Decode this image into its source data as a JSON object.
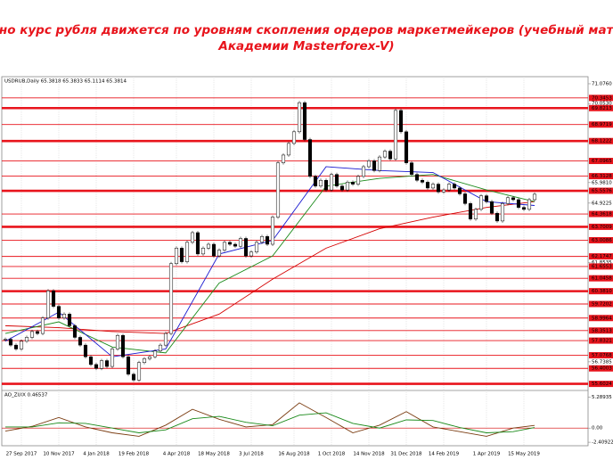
{
  "chart_data": {
    "type": "candlestick",
    "title": [
      "Реально курс рубля движется по уровням скопления ордеров маркетмейкеров (учебный материал",
      "Академии Masterforex-V)"
    ],
    "symbol_label": "USDRUB,Daily  65.3818 65.3833 65.1114 65.3814",
    "values": [
      57.9,
      57.6,
      57.4,
      57.8,
      58.0,
      58.3,
      58.2,
      59.0,
      60.4,
      59.6,
      59.0,
      59.2,
      58.6,
      58.0,
      57.6,
      57.0,
      56.6,
      56.4,
      56.8,
      56.5,
      57.4,
      58.1,
      57.0,
      56.1,
      55.8,
      56.7,
      56.9,
      57.0,
      57.3,
      57.6,
      58.2,
      61.8,
      62.6,
      61.9,
      62.9,
      63.4,
      62.3,
      62.6,
      62.8,
      62.2,
      62.5,
      62.9,
      62.8,
      62.7,
      63.1,
      62.2,
      62.4,
      62.9,
      63.2,
      62.8,
      64.2,
      67.0,
      67.4,
      68.0,
      68.6,
      70.1,
      68.2,
      66.3,
      65.8,
      66.1,
      65.6,
      66.4,
      65.8,
      65.6,
      66.0,
      65.9,
      66.3,
      66.8,
      67.1,
      66.6,
      67.3,
      67.6,
      67.2,
      69.7,
      68.6,
      67.0,
      66.4,
      66.1,
      66.0,
      65.7,
      65.9,
      65.5,
      65.6,
      65.9,
      65.7,
      65.4,
      64.9,
      64.1,
      64.6,
      65.3,
      65.0,
      64.4,
      64.0,
      64.9,
      65.2,
      65.1,
      64.7,
      64.6,
      65.1,
      65.38
    ],
    "series": [
      {
        "color": "#d40000",
        "x": [
          0,
          10,
          20,
          30,
          40,
          50,
          60,
          70,
          80,
          90,
          99
        ],
        "values": [
          58.6,
          58.5,
          58.3,
          58.2,
          59.2,
          61.0,
          62.6,
          63.6,
          64.2,
          64.7,
          65.0
        ]
      },
      {
        "color": "#1a8a1a",
        "x": [
          0,
          10,
          20,
          30,
          40,
          50,
          60,
          70,
          80,
          90,
          99
        ],
        "values": [
          58.2,
          58.8,
          57.5,
          57.2,
          60.8,
          62.2,
          65.8,
          66.2,
          66.4,
          65.6,
          65.0
        ]
      },
      {
        "color": "#1a1ad0",
        "x": [
          0,
          10,
          20,
          30,
          40,
          50,
          60,
          70,
          80,
          90,
          99
        ],
        "values": [
          57.8,
          59.3,
          57.0,
          57.4,
          62.3,
          63.0,
          66.8,
          66.6,
          66.5,
          65.0,
          64.8
        ]
      }
    ],
    "xlim": [
      0,
      109
    ],
    "xticks": [
      {
        "value": 3,
        "label": "27 Sep 2017"
      },
      {
        "value": 10,
        "label": "10 Nov 2017"
      },
      {
        "value": 17,
        "label": "4 Jan 2018"
      },
      {
        "value": 24,
        "label": "19 Feb 2018"
      },
      {
        "value": 32,
        "label": "4 Apr 2018"
      },
      {
        "value": 39,
        "label": "18 May 2018"
      },
      {
        "value": 46,
        "label": "3 Jul 2018"
      },
      {
        "value": 54,
        "label": "16 Aug 2018"
      },
      {
        "value": 61,
        "label": "1 Oct 2018"
      },
      {
        "value": 68,
        "label": "14 Nov 2018"
      },
      {
        "value": 75,
        "label": "31 Dec 2018"
      },
      {
        "value": 82,
        "label": "14 Feb 2019"
      },
      {
        "value": 90,
        "label": "1 Apr 2019"
      },
      {
        "value": 97,
        "label": "15 May 2019"
      }
    ],
    "ylim": [
      55.4,
      71.35
    ],
    "yticks": [
      {
        "value": 71.076,
        "label": "71.0760"
      },
      {
        "value": 70.053,
        "label": "70.0530"
      },
      {
        "value": 65.981,
        "label": "65.9810"
      },
      {
        "value": 64.9225,
        "label": "64.9225"
      },
      {
        "value": 61.8535,
        "label": "61.8535"
      },
      {
        "value": 56.7385,
        "label": "56.7385"
      }
    ],
    "levels": [
      {
        "value": 70.3453,
        "label": "70.3453"
      },
      {
        "value": 69.8213,
        "label": "69.8213"
      },
      {
        "value": 68.9719,
        "label": "68.9719"
      },
      {
        "value": 68.1222,
        "label": "68.1222"
      },
      {
        "value": 67.0965,
        "label": "67.0965"
      },
      {
        "value": 66.3128,
        "label": "66.3128"
      },
      {
        "value": 65.5576,
        "label": "65.5576"
      },
      {
        "value": 64.3618,
        "label": "64.3618"
      },
      {
        "value": 63.7009,
        "label": "63.7009"
      },
      {
        "value": 63.0086,
        "label": "63.0086"
      },
      {
        "value": 62.1747,
        "label": "62.1747"
      },
      {
        "value": 61.6553,
        "label": "61.6553"
      },
      {
        "value": 61.0458,
        "label": "61.0458"
      },
      {
        "value": 60.381,
        "label": "60.3810"
      },
      {
        "value": 59.7202,
        "label": "59.7202"
      },
      {
        "value": 58.9964,
        "label": "58.9964"
      },
      {
        "value": 58.3513,
        "label": "58.3513"
      },
      {
        "value": 57.8321,
        "label": "57.8321"
      },
      {
        "value": 57.0768,
        "label": "57.0768"
      },
      {
        "value": 56.4003,
        "label": "56.4003"
      },
      {
        "value": 55.6024,
        "label": "55.6024"
      }
    ],
    "major_levels": [
      1,
      3,
      6,
      8,
      13,
      20
    ],
    "level_color": "#e8141c",
    "indicator": {
      "label": "AO_ZUIX 0.46537",
      "ylim": [
        -3,
        5.8
      ],
      "yticks": [
        {
          "value": 5.28935,
          "label": "5.28935"
        },
        {
          "value": 0,
          "label": "0.00"
        },
        {
          "value": -2.40922,
          "label": "-2.40922"
        }
      ],
      "series": [
        {
          "color": "#7a3b10",
          "x": [
            0,
            5,
            10,
            15,
            20,
            25,
            30,
            35,
            40,
            45,
            50,
            55,
            60,
            65,
            70,
            75,
            80,
            85,
            90,
            95,
            99
          ],
          "values": [
            -0.5,
            0.3,
            1.8,
            0.2,
            -0.8,
            -1.4,
            0.5,
            3.2,
            1.5,
            0.2,
            0.6,
            4.3,
            1.8,
            -0.8,
            0.5,
            2.8,
            0.2,
            -0.6,
            -1.4,
            0.0,
            0.46537
          ]
        },
        {
          "color": "#1a8a1a",
          "x": [
            0,
            5,
            10,
            15,
            20,
            25,
            30,
            35,
            40,
            45,
            50,
            55,
            60,
            65,
            70,
            75,
            80,
            85,
            90,
            95,
            99
          ],
          "values": [
            0.2,
            0.2,
            0.9,
            0.8,
            0,
            -0.8,
            -0.3,
            1.6,
            2.0,
            1.0,
            0.4,
            2.2,
            2.6,
            0.8,
            0.0,
            1.4,
            1.3,
            0.1,
            -0.8,
            -0.6,
            0.1
          ]
        }
      ]
    }
  }
}
